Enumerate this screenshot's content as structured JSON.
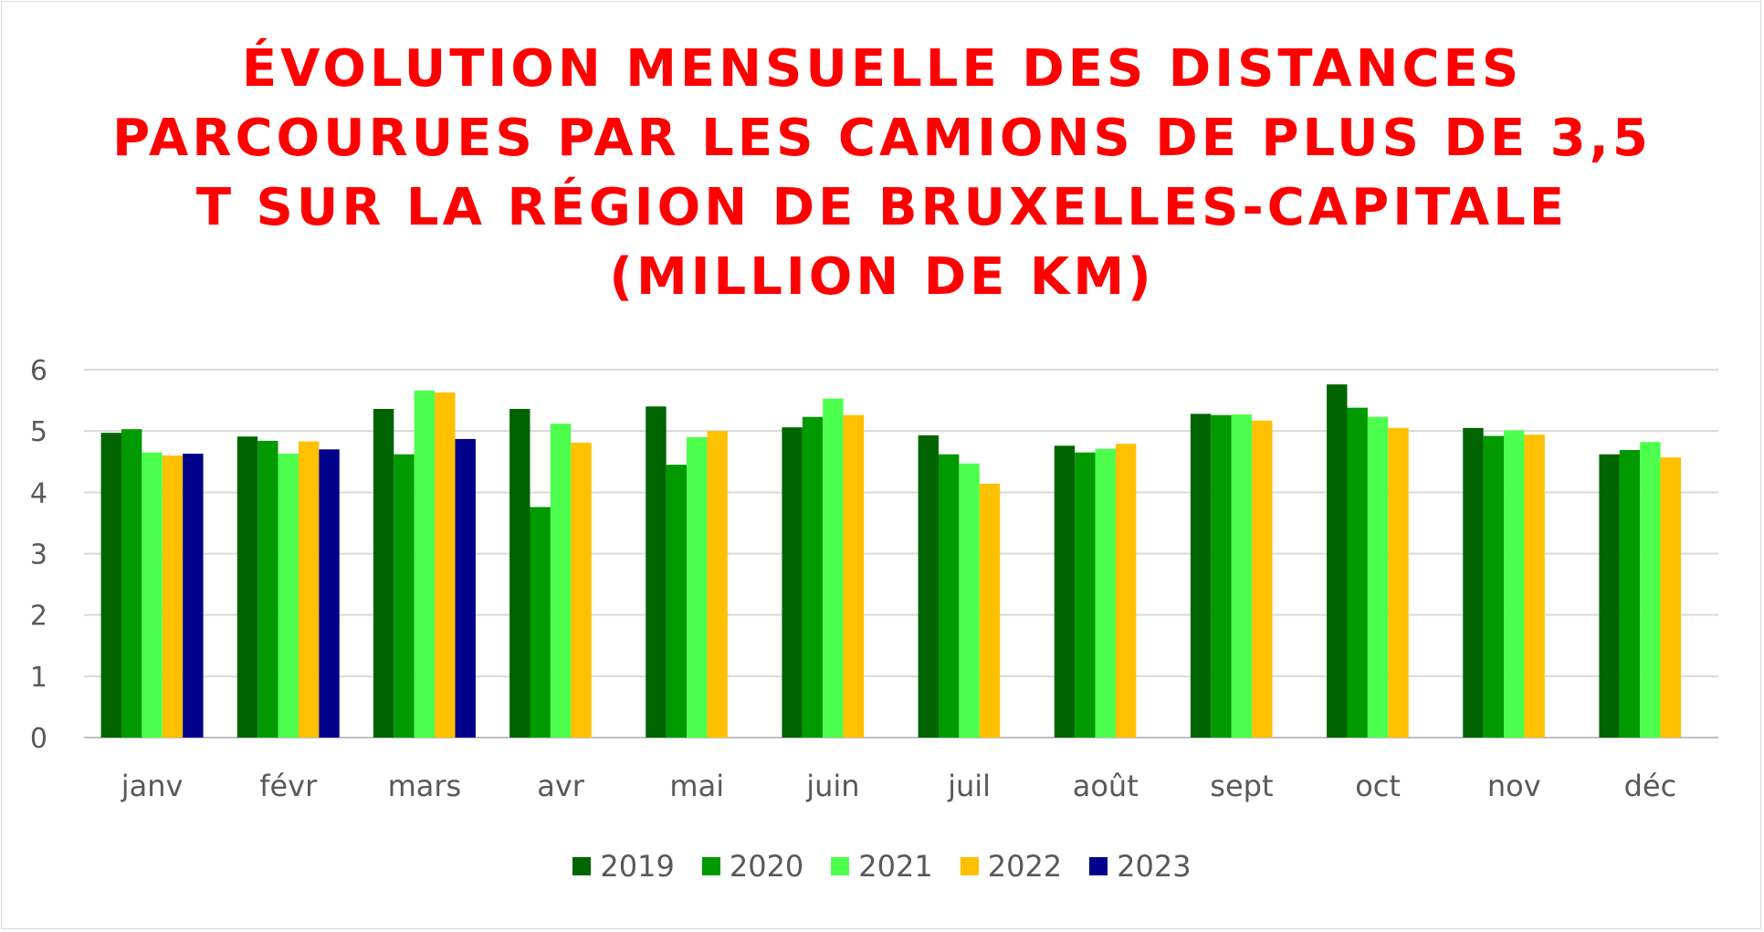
{
  "chart_data": {
    "type": "bar",
    "title_lines": [
      "ÉVOLUTION MENSUELLE DES DISTANCES",
      "PARCOURUES PAR LES CAMIONS DE PLUS DE 3,5",
      "T SUR LA RÉGION DE BRUXELLES-CAPITALE",
      "(MILLION DE KM)"
    ],
    "categories": [
      "janv",
      "févr",
      "mars",
      "avr",
      "mai",
      "juin",
      "juil",
      "août",
      "sept",
      "oct",
      "nov",
      "déc"
    ],
    "y_ticks": [
      "0",
      "1",
      "2",
      "3",
      "4",
      "5",
      "6"
    ],
    "ylim": [
      0,
      6
    ],
    "grid": true,
    "legend_position": "bottom",
    "series": [
      {
        "name": "2019",
        "color": "#006400",
        "values": [
          4.97,
          4.91,
          5.36,
          5.36,
          5.4,
          5.06,
          4.93,
          4.76,
          5.28,
          5.76,
          5.05,
          4.62
        ]
      },
      {
        "name": "2020",
        "color": "#009900",
        "values": [
          5.03,
          4.84,
          4.62,
          3.76,
          4.45,
          5.23,
          4.62,
          4.65,
          5.26,
          5.38,
          4.92,
          4.69
        ]
      },
      {
        "name": "2021",
        "color": "#4DFF4D",
        "values": [
          4.65,
          4.63,
          5.66,
          5.12,
          4.9,
          5.53,
          4.47,
          4.71,
          5.27,
          5.23,
          5.01,
          4.82
        ]
      },
      {
        "name": "2022",
        "color": "#FFC000",
        "values": [
          4.6,
          4.83,
          5.63,
          4.81,
          5.0,
          5.26,
          4.14,
          4.79,
          5.17,
          5.05,
          4.94,
          4.57
        ]
      },
      {
        "name": "2023",
        "color": "#00008B",
        "values": [
          4.63,
          4.7,
          4.87,
          null,
          null,
          null,
          null,
          null,
          null,
          null,
          null,
          null
        ]
      }
    ]
  }
}
